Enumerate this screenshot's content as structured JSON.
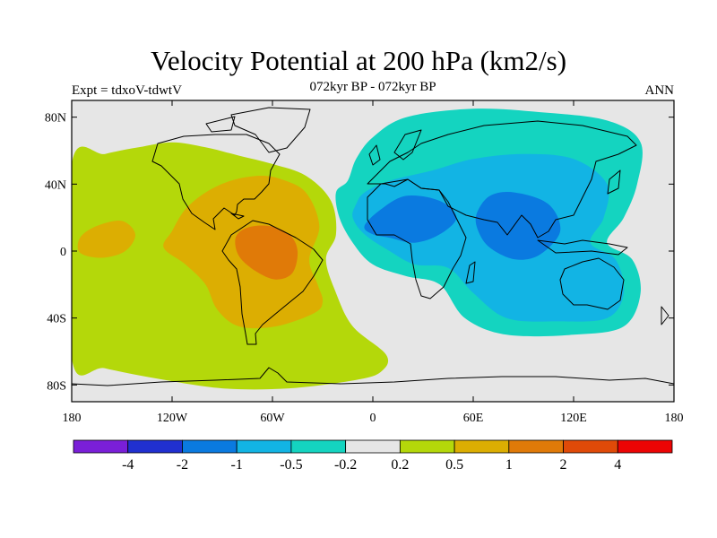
{
  "figure": {
    "title": "Velocity Potential at 200 hPa (km2/s)",
    "subtitle": "072kyr BP - 072kyr BP",
    "left_label": "Expt = tdxoV-tdwtV",
    "right_label": "ANN"
  },
  "map": {
    "projection": "cylindrical-equidistant",
    "lon_range": [
      -180,
      180
    ],
    "lat_range": [
      -90,
      90
    ],
    "background_color": "#e6e6e6",
    "x_ticks": [
      {
        "lon": -180,
        "label": "180"
      },
      {
        "lon": -120,
        "label": "120W"
      },
      {
        "lon": -60,
        "label": "60W"
      },
      {
        "lon": 0,
        "label": "0"
      },
      {
        "lon": 60,
        "label": "60E"
      },
      {
        "lon": 120,
        "label": "120E"
      },
      {
        "lon": 180,
        "label": "180"
      }
    ],
    "y_ticks": [
      {
        "lat": 80,
        "label": "80N"
      },
      {
        "lat": 40,
        "label": "40N"
      },
      {
        "lat": 0,
        "label": "0"
      },
      {
        "lat": -40,
        "label": "40S"
      },
      {
        "lat": -80,
        "label": "80S"
      }
    ]
  },
  "colorbar": {
    "colors": [
      "#7a1fd8",
      "#2030d0",
      "#0a7ae0",
      "#12b4e4",
      "#14d4c0",
      "#e6e6e6",
      "#b4d80a",
      "#dcae02",
      "#e07a08",
      "#e04a08",
      "#ec0404"
    ],
    "labels": [
      "-4",
      "-2",
      "-1",
      "-0.5",
      "-0.2",
      "0.2",
      "0.5",
      "1",
      "2",
      "4"
    ]
  },
  "chart_data": {
    "type": "heatmap",
    "title": "Velocity Potential at 200 hPa (km2/s)",
    "subtitle": "072kyr BP - 072kyr BP",
    "levels": [
      -4,
      -2,
      -1,
      -0.5,
      -0.2,
      0.2,
      0.5,
      1,
      2,
      4
    ],
    "xlim": [
      -180,
      180
    ],
    "ylim": [
      -90,
      90
    ],
    "regions": [
      {
        "level_range": [
          0.2,
          0.5
        ],
        "description": "positive band over Pacific, Americas and Atlantic",
        "lonlat": [
          [
            -180,
            52
          ],
          [
            -160,
            58
          ],
          [
            -140,
            62
          ],
          [
            -120,
            65
          ],
          [
            -100,
            62
          ],
          [
            -80,
            57
          ],
          [
            -60,
            52
          ],
          [
            -40,
            45
          ],
          [
            -25,
            30
          ],
          [
            -22,
            10
          ],
          [
            -28,
            -5
          ],
          [
            -22,
            -25
          ],
          [
            -12,
            -45
          ],
          [
            8,
            -62
          ],
          [
            5,
            -72
          ],
          [
            -10,
            -77
          ],
          [
            -50,
            -82
          ],
          [
            -90,
            -82
          ],
          [
            -130,
            -76
          ],
          [
            -160,
            -70
          ],
          [
            -180,
            -64
          ]
        ]
      },
      {
        "level_range": [
          0.5,
          1
        ],
        "description": "Americas / tropical Atlantic",
        "lonlat": [
          [
            -120,
            12
          ],
          [
            -112,
            25
          ],
          [
            -100,
            35
          ],
          [
            -85,
            42
          ],
          [
            -68,
            45
          ],
          [
            -55,
            43
          ],
          [
            -40,
            35
          ],
          [
            -32,
            15
          ],
          [
            -38,
            -5
          ],
          [
            -33,
            -20
          ],
          [
            -30,
            -30
          ],
          [
            -35,
            -37
          ],
          [
            -58,
            -45
          ],
          [
            -80,
            -45
          ],
          [
            -93,
            -35
          ],
          [
            -100,
            -20
          ],
          [
            -112,
            -8
          ],
          [
            -125,
            2
          ]
        ]
      },
      {
        "level_range": [
          0.5,
          1
        ],
        "description": "central Pacific lobe",
        "lonlat": [
          [
            -175,
            8
          ],
          [
            -165,
            15
          ],
          [
            -150,
            18
          ],
          [
            -142,
            10
          ],
          [
            -148,
            0
          ],
          [
            -162,
            -4
          ],
          [
            -175,
            -1
          ]
        ]
      },
      {
        "level_range": [
          1,
          2
        ],
        "description": "northern South America",
        "lonlat": [
          [
            -82,
            8
          ],
          [
            -75,
            14
          ],
          [
            -62,
            15
          ],
          [
            -50,
            10
          ],
          [
            -45,
            0
          ],
          [
            -48,
            -13
          ],
          [
            -58,
            -17
          ],
          [
            -70,
            -12
          ],
          [
            -80,
            -3
          ]
        ]
      },
      {
        "level_range": [
          -0.5,
          -0.2
        ],
        "description": "negative band over Africa, Eurasia and Indo-Pacific",
        "lonlat": [
          [
            -15,
            42
          ],
          [
            -10,
            55
          ],
          [
            0,
            68
          ],
          [
            20,
            80
          ],
          [
            60,
            85
          ],
          [
            100,
            83
          ],
          [
            140,
            78
          ],
          [
            160,
            65
          ],
          [
            158,
            40
          ],
          [
            150,
            20
          ],
          [
            140,
            5
          ],
          [
            155,
            -5
          ],
          [
            160,
            -25
          ],
          [
            150,
            -45
          ],
          [
            120,
            -50
          ],
          [
            80,
            -50
          ],
          [
            55,
            -40
          ],
          [
            40,
            -20
          ],
          [
            20,
            -15
          ],
          [
            0,
            -8
          ],
          [
            -12,
            5
          ],
          [
            -20,
            20
          ],
          [
            -22,
            35
          ]
        ]
      },
      {
        "level_range": [
          -1,
          -0.5
        ],
        "description": "Africa to Asia",
        "lonlat": [
          [
            -10,
            28
          ],
          [
            -5,
            35
          ],
          [
            10,
            42
          ],
          [
            35,
            48
          ],
          [
            60,
            55
          ],
          [
            90,
            58
          ],
          [
            120,
            55
          ],
          [
            140,
            40
          ],
          [
            138,
            20
          ],
          [
            130,
            5
          ],
          [
            145,
            -5
          ],
          [
            150,
            -25
          ],
          [
            140,
            -40
          ],
          [
            110,
            -42
          ],
          [
            80,
            -40
          ],
          [
            60,
            -25
          ],
          [
            45,
            -10
          ],
          [
            25,
            -8
          ],
          [
            10,
            0
          ],
          [
            -5,
            10
          ],
          [
            -12,
            20
          ]
        ]
      },
      {
        "level_range": [
          -2,
          -1
        ],
        "description": "North Africa / Arabia",
        "lonlat": [
          [
            -5,
            15
          ],
          [
            5,
            25
          ],
          [
            20,
            33
          ],
          [
            40,
            30
          ],
          [
            50,
            20
          ],
          [
            40,
            10
          ],
          [
            25,
            5
          ],
          [
            10,
            8
          ],
          [
            0,
            10
          ]
        ]
      },
      {
        "level_range": [
          -2,
          -1
        ],
        "description": "India / Southeast Asia",
        "lonlat": [
          [
            62,
            22
          ],
          [
            70,
            33
          ],
          [
            85,
            35
          ],
          [
            105,
            28
          ],
          [
            112,
            12
          ],
          [
            100,
            -2
          ],
          [
            85,
            -5
          ],
          [
            70,
            2
          ],
          [
            63,
            12
          ]
        ]
      }
    ]
  }
}
